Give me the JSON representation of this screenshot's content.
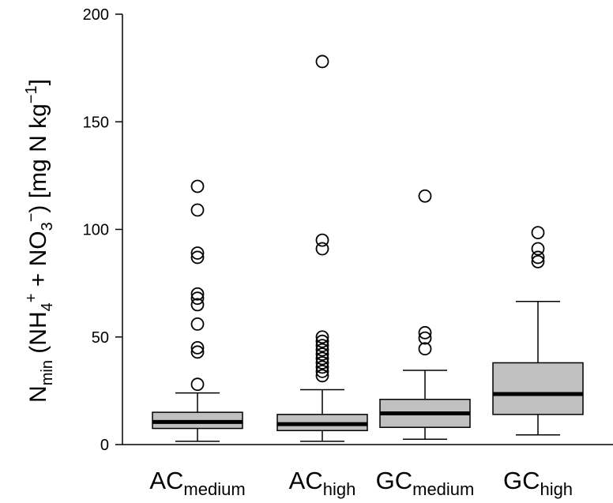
{
  "chart_data": {
    "type": "box",
    "ylim": [
      0,
      200
    ],
    "yticks": [
      0,
      50,
      100,
      150,
      200
    ],
    "ylabel": {
      "main": "N",
      "sub": "min",
      "p1": " (NH",
      "p1_sub": "4",
      "p1_sup": "+",
      "p2": " + NO",
      "p2_sub": "3",
      "p2_sup": "−",
      "p3": ") [mg N kg",
      "p3_sup": "−1",
      "p4": "]"
    },
    "categories": [
      {
        "main": "AC",
        "sub": "medium"
      },
      {
        "main": "AC",
        "sub": "high"
      },
      {
        "main": "GC",
        "sub": "medium"
      },
      {
        "main": "GC",
        "sub": "high"
      }
    ],
    "boxes": [
      {
        "whisker_low": 1.5,
        "q1": 7.5,
        "median": 10.5,
        "q3": 15,
        "whisker_high": 24,
        "outliers": [
          28,
          43,
          45,
          56,
          65,
          68,
          70,
          87,
          89,
          109,
          120
        ]
      },
      {
        "whisker_low": 1.5,
        "q1": 6.5,
        "median": 9.5,
        "q3": 14,
        "whisker_high": 25.5,
        "outliers": [
          32,
          34,
          36,
          38,
          40,
          42,
          44,
          46,
          48,
          50,
          91,
          95,
          178
        ]
      },
      {
        "whisker_low": 2.5,
        "q1": 8,
        "median": 14.5,
        "q3": 21,
        "whisker_high": 34.5,
        "outliers": [
          44.5,
          49.5,
          52,
          115.5
        ]
      },
      {
        "whisker_low": 4.5,
        "q1": 14,
        "median": 23.5,
        "q3": 38,
        "whisker_high": 66.5,
        "outliers": [
          85,
          87,
          91,
          98.5
        ]
      }
    ],
    "box_fill": "#c0c0c0"
  }
}
